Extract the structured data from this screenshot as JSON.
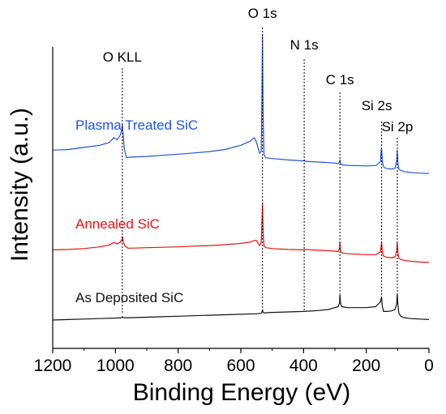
{
  "chart_data": {
    "type": "line",
    "title": "",
    "xlabel": "Binding Energy (eV)",
    "ylabel": "Intensity (a.u.)",
    "xlim": [
      1200,
      0
    ],
    "x_reversed": true,
    "y_ticks_shown": false,
    "grid": false,
    "x_ticks": [
      1200,
      1000,
      800,
      600,
      400,
      200,
      0
    ],
    "x_tick_labels": [
      "1200",
      "1000",
      "800",
      "600",
      "400",
      "200",
      "0"
    ],
    "annotations": [
      {
        "label": "O KLL",
        "x": 978
      },
      {
        "label": "O 1s",
        "x": 531
      },
      {
        "label": "N 1s",
        "x": 398
      },
      {
        "label": "C 1s",
        "x": 284
      },
      {
        "label": "Si 2s",
        "x": 151
      },
      {
        "label": "Si 2p",
        "x": 101
      }
    ],
    "series": [
      {
        "name": "Plasma Treated SiC",
        "color": "#2255d8",
        "x": [
          1200,
          1150,
          1100,
          1050,
          1020,
          1005,
          995,
          985,
          980,
          978,
          975,
          972,
          965,
          950,
          900,
          850,
          800,
          750,
          700,
          650,
          600,
          570,
          558,
          552,
          545,
          540,
          535,
          533,
          531,
          529,
          526,
          520,
          500,
          450,
          400,
          398,
          395,
          350,
          300,
          290,
          285,
          284,
          282,
          278,
          260,
          200,
          170,
          155,
          152,
          151,
          149,
          145,
          135,
          120,
          108,
          103,
          101,
          99,
          96,
          90,
          80,
          60,
          30,
          0
        ],
        "y": [
          0.155,
          0.16,
          0.175,
          0.19,
          0.21,
          0.245,
          0.23,
          0.26,
          0.3,
          0.34,
          0.26,
          0.17,
          0.1,
          0.105,
          0.11,
          0.118,
          0.126,
          0.135,
          0.145,
          0.16,
          0.19,
          0.22,
          0.245,
          0.225,
          0.17,
          0.13,
          0.15,
          0.5,
          0.98,
          0.4,
          0.12,
          0.1,
          0.095,
          0.085,
          0.078,
          0.085,
          0.075,
          0.07,
          0.062,
          0.058,
          0.07,
          0.085,
          0.062,
          0.05,
          0.046,
          0.042,
          0.045,
          0.07,
          0.16,
          0.16,
          0.08,
          0.035,
          0.022,
          0.02,
          0.025,
          0.08,
          0.155,
          0.06,
          0.02,
          0.01,
          0.002,
          -0.005,
          -0.01,
          -0.012
        ]
      },
      {
        "name": "Annealed SiC",
        "color": "#e11515",
        "x": [
          1200,
          1150,
          1100,
          1050,
          1020,
          1005,
          995,
          985,
          980,
          978,
          975,
          970,
          960,
          950,
          900,
          850,
          800,
          750,
          700,
          650,
          600,
          570,
          555,
          550,
          545,
          540,
          535,
          533,
          531,
          529,
          526,
          520,
          500,
          450,
          400,
          398,
          350,
          300,
          290,
          285,
          284,
          282,
          278,
          260,
          200,
          170,
          155,
          152,
          151,
          149,
          145,
          135,
          120,
          108,
          103,
          101,
          99,
          96,
          90,
          80,
          60,
          30,
          0
        ],
        "y": [
          0.155,
          0.16,
          0.17,
          0.19,
          0.21,
          0.24,
          0.225,
          0.24,
          0.27,
          0.31,
          0.25,
          0.2,
          0.175,
          0.175,
          0.18,
          0.185,
          0.19,
          0.198,
          0.205,
          0.215,
          0.23,
          0.245,
          0.265,
          0.26,
          0.23,
          0.205,
          0.24,
          0.45,
          0.69,
          0.35,
          0.2,
          0.18,
          0.17,
          0.16,
          0.155,
          0.16,
          0.15,
          0.14,
          0.135,
          0.17,
          0.25,
          0.15,
          0.12,
          0.11,
          0.1,
          0.1,
          0.13,
          0.22,
          0.24,
          0.13,
          0.085,
          0.07,
          0.065,
          0.075,
          0.15,
          0.24,
          0.12,
          0.06,
          0.045,
          0.035,
          0.025,
          0.015,
          0.01
        ]
      },
      {
        "name": "As Deposited SiC",
        "color": "#111111",
        "x": [
          1200,
          1150,
          1100,
          1050,
          1000,
          980,
          978,
          975,
          950,
          900,
          850,
          800,
          750,
          700,
          650,
          600,
          550,
          535,
          533,
          531,
          529,
          526,
          520,
          500,
          450,
          400,
          350,
          320,
          300,
          290,
          285,
          284,
          282,
          278,
          260,
          200,
          170,
          155,
          152,
          151,
          149,
          145,
          135,
          120,
          108,
          103,
          101,
          99,
          96,
          90,
          80,
          60,
          30,
          0
        ],
        "y": [
          0.0,
          0.005,
          0.01,
          0.015,
          0.02,
          0.025,
          0.035,
          0.025,
          0.025,
          0.03,
          0.035,
          0.04,
          0.045,
          0.05,
          0.055,
          0.06,
          0.065,
          0.07,
          0.08,
          0.105,
          0.08,
          0.075,
          0.075,
          0.08,
          0.085,
          0.09,
          0.1,
          0.11,
          0.13,
          0.14,
          0.18,
          0.26,
          0.17,
          0.14,
          0.13,
          0.13,
          0.14,
          0.19,
          0.23,
          0.235,
          0.15,
          0.09,
          0.09,
          0.095,
          0.11,
          0.17,
          0.27,
          0.16,
          0.07,
          0.04,
          0.025,
          0.015,
          0.01,
          0.005
        ]
      }
    ]
  }
}
